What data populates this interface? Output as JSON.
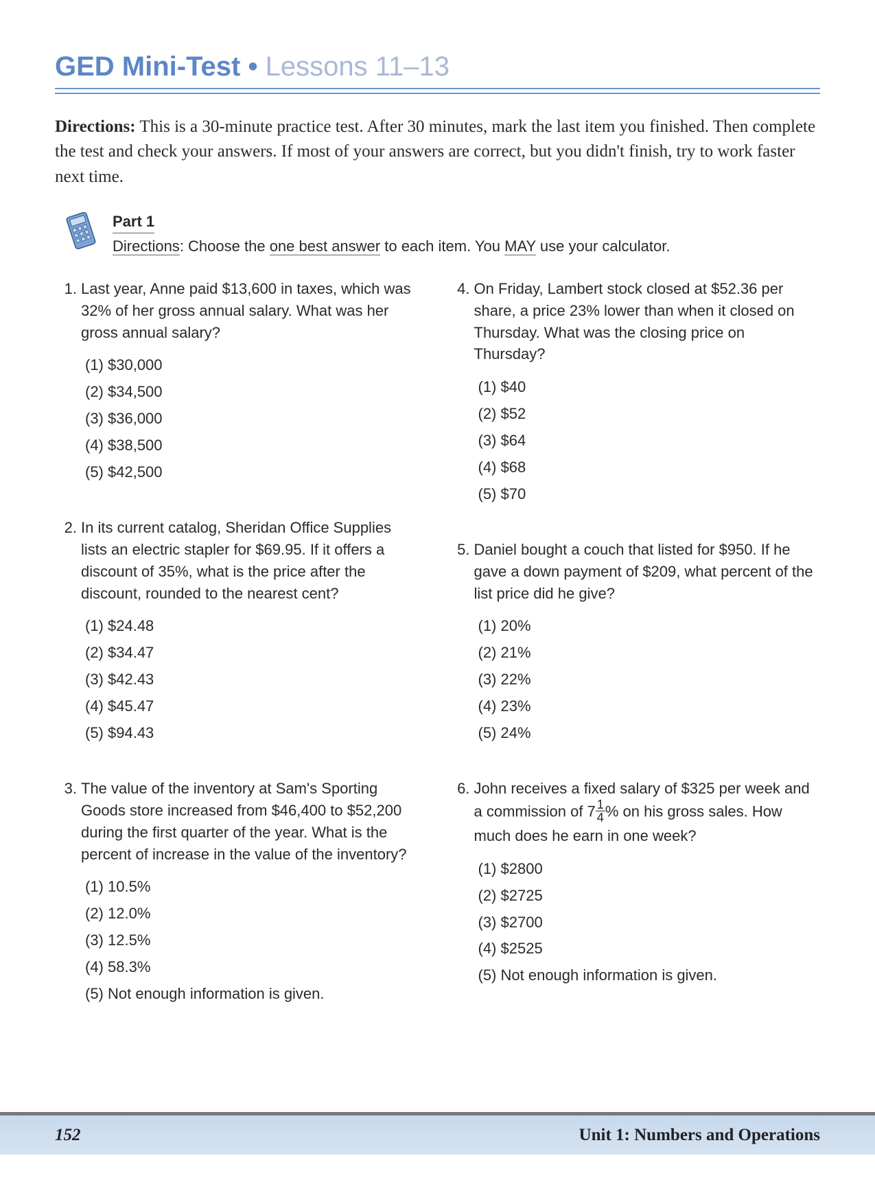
{
  "header": {
    "title_bold": "GED Mini-Test",
    "title_dot": " • ",
    "title_light": "Lessons 11–13"
  },
  "directions": {
    "label": "Directions:",
    "text": " This is a 30-minute practice test. After 30 minutes, mark the last item you finished. Then complete the test and check your answers. If most of your answers are correct, but you didn't finish, try to work faster next time."
  },
  "part1": {
    "label": "Part 1",
    "dir_label": "Directions",
    "text_before": ": Choose the ",
    "underline1": "one best answer",
    "text_mid": " to each item. You ",
    "underline2": "MAY",
    "text_after": " use your calculator."
  },
  "left_questions": [
    {
      "num": "1.",
      "text": "Last year, Anne paid $13,600 in taxes, which was 32% of her gross annual salary. What was her gross annual salary?",
      "choices": [
        "(1)  $30,000",
        "(2)  $34,500",
        "(3)  $36,000",
        "(4)  $38,500",
        "(5)  $42,500"
      ]
    },
    {
      "num": "2.",
      "text": "In its current catalog, Sheridan Office Supplies lists an electric stapler for $69.95. If it offers a discount of 35%, what is the price after the discount, rounded to the nearest cent?",
      "choices": [
        "(1)  $24.48",
        "(2)  $34.47",
        "(3)  $42.43",
        "(4)  $45.47",
        "(5)  $94.43"
      ]
    },
    {
      "num": "3.",
      "text": "The value of the inventory at Sam's Sporting Goods store increased from $46,400 to $52,200 during the first quarter of the year. What is the percent of increase in the value of the inventory?",
      "choices": [
        "(1)  10.5%",
        "(2)  12.0%",
        "(3)  12.5%",
        "(4)  58.3%",
        "(5)  Not enough information is given."
      ]
    }
  ],
  "right_questions": [
    {
      "num": "4.",
      "text": "On Friday, Lambert stock closed at $52.36 per share, a price 23% lower than when it closed on Thursday. What was the closing price on Thursday?",
      "choices": [
        "(1)  $40",
        "(2)  $52",
        "(3)  $64",
        "(4)  $68",
        "(5)  $70"
      ]
    },
    {
      "num": "5.",
      "text": "Daniel bought a couch that listed for $950. If he gave a down payment of $209, what percent of the list price did he give?",
      "choices": [
        "(1)  20%",
        "(2)  21%",
        "(3)  22%",
        "(4)  23%",
        "(5)  24%"
      ]
    },
    {
      "num": "6.",
      "text_before": "John receives a fixed salary of $325 per week and a commission of 7",
      "frac_num": "1",
      "frac_den": "4",
      "text_after": "% on his gross sales. How much does he earn in one week?",
      "choices": [
        "(1)  $2800",
        "(2)  $2725",
        "(3)  $2700",
        "(4)  $2525",
        "(5)  Not enough information is given."
      ]
    }
  ],
  "footer": {
    "page": "152",
    "unit": "Unit 1: Numbers and Operations"
  },
  "colors": {
    "title_blue": "#5b87c7",
    "title_light": "#a9b8d4",
    "rule_blue": "#6a95d3",
    "footer_bg": "#cfe0f0",
    "text": "#2a2a2a"
  }
}
